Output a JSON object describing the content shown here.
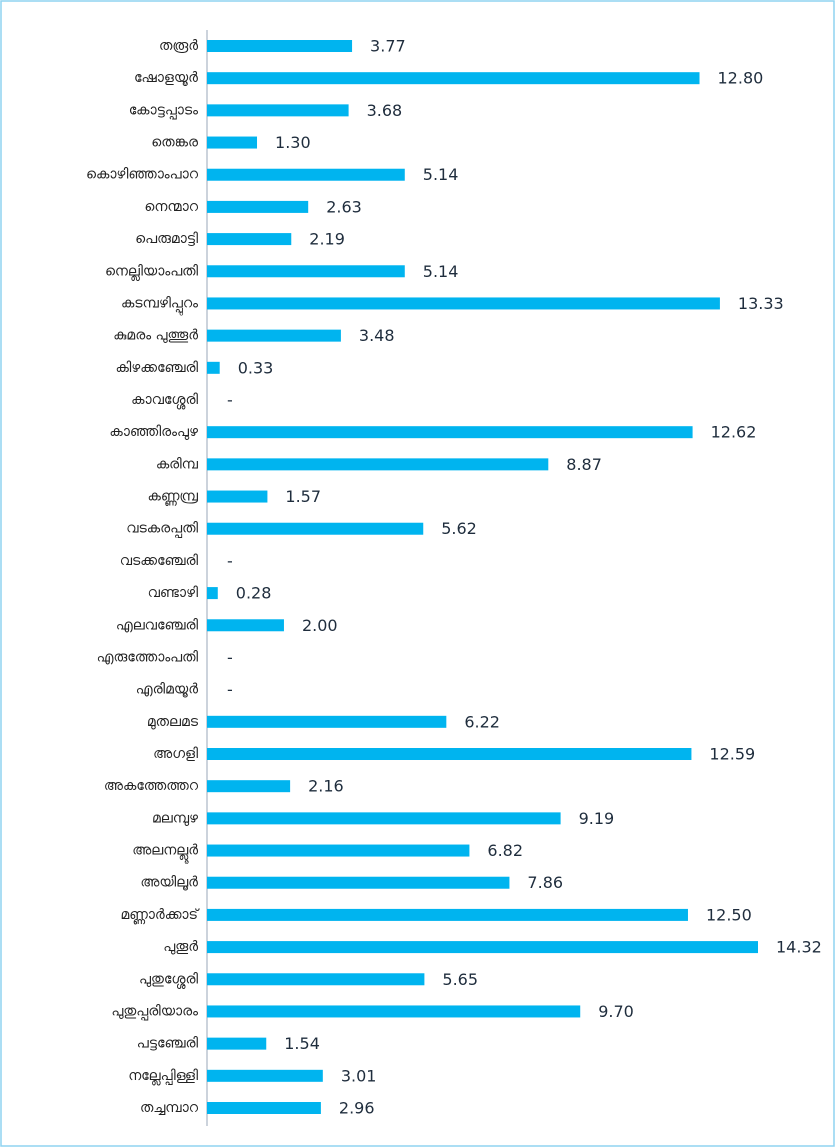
{
  "chart_data": {
    "type": "barh",
    "categories": [
      "തരൂർ",
      "ഷോളയൂർ",
      "കോട്ടപ്പാടം",
      "തെങ്കര",
      "കൊഴിഞ്ഞാംപാറ",
      "നെന്മാറ",
      "പെരുമാട്ടി",
      "നെല്ലിയാംപതി",
      "കടമ്പഴിപ്പുറം",
      "കുമരം പുത്തൂർ",
      "കിഴക്കഞ്ചേരി",
      "കാവശ്ശേരി",
      "കാഞ്ഞിരംപുഴ",
      "കരിമ്പ",
      "കണ്ണമ്പ്ര",
      "വടകരപ്പതി",
      "വടക്കഞ്ചേരി",
      "വണ്ടാഴി",
      "എലവഞ്ചേരി",
      "എരുത്തോംപതി",
      "എരിമയൂർ",
      "മുതലമട",
      "അഗളി",
      "അകത്തേത്തറ",
      "മലമ്പുഴ",
      "അലനല്ലൂർ",
      "അയിലൂർ",
      "മണ്ണാർക്കാട്",
      "പുതൂർ",
      "പുതുശ്ശേരി",
      "പുതുപ്പരിയാരം",
      "പട്ടഞ്ചേരി",
      "നല്ലേപ്പിള്ളി",
      "തച്ചമ്പാറ"
    ],
    "values": [
      3.77,
      12.8,
      3.68,
      1.3,
      5.14,
      2.63,
      2.19,
      5.14,
      13.33,
      3.48,
      0.33,
      null,
      12.62,
      8.87,
      1.57,
      5.62,
      null,
      0.28,
      2.0,
      null,
      null,
      6.22,
      12.59,
      2.16,
      9.19,
      6.82,
      7.86,
      12.5,
      14.32,
      5.65,
      9.7,
      1.54,
      3.01,
      2.96
    ],
    "value_labels": [
      "3.77",
      "12.80",
      "3.68",
      "1.30",
      "5.14",
      "2.63",
      "2.19",
      "5.14",
      "13.33",
      "3.48",
      "0.33",
      "-",
      "12.62",
      "8.87",
      "1.57",
      "5.62",
      "-",
      "0.28",
      "2.00",
      "-",
      "-",
      "6.22",
      "12.59",
      "2.16",
      "9.19",
      "6.82",
      "7.86",
      "12.50",
      "14.32",
      "5.65",
      "9.70",
      "1.54",
      "3.01",
      "2.96"
    ],
    "color": "#00b4ef"
  }
}
